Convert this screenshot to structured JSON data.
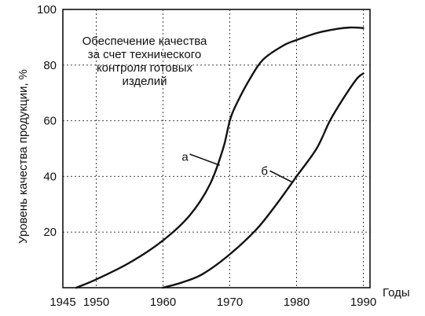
{
  "chart_data": {
    "type": "line",
    "ylabel": "Уровень качества продукции, %",
    "xlabel": "Годы",
    "xlim": [
      1945,
      1991
    ],
    "ylim": [
      0,
      100
    ],
    "x_ticks": [
      1945,
      1950,
      1960,
      1970,
      1980,
      1990
    ],
    "y_ticks": [
      20,
      40,
      60,
      80,
      100
    ],
    "grid": "horizontal dotted",
    "annotation": [
      "Обеспечение качества",
      "за счет технического",
      "контроля готовых",
      "изделий"
    ],
    "series": [
      {
        "name": "а",
        "x": [
          1947,
          1950,
          1955,
          1960,
          1964,
          1967,
          1969,
          1970,
          1971,
          1973,
          1975,
          1978,
          1980,
          1983,
          1986,
          1988,
          1990
        ],
        "y": [
          0,
          3,
          9,
          17,
          26,
          37,
          50,
          60,
          66,
          75,
          82,
          87,
          89,
          91.5,
          93,
          93.5,
          93.3
        ]
      },
      {
        "name": "б",
        "x": [
          1960,
          1963,
          1966,
          1970,
          1974,
          1977,
          1980,
          1983,
          1985,
          1987,
          1989,
          1990
        ],
        "y": [
          0,
          2,
          5,
          12,
          21,
          30,
          40,
          50,
          60,
          68,
          75,
          77
        ]
      }
    ]
  }
}
